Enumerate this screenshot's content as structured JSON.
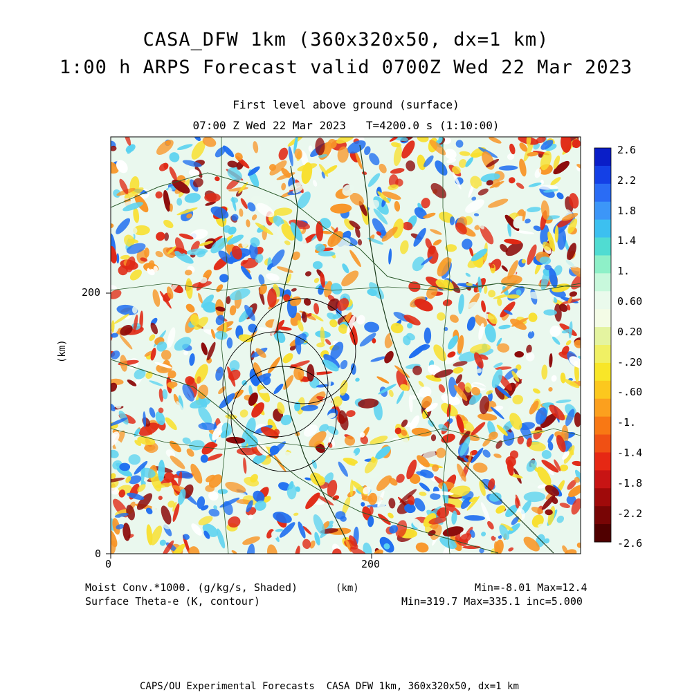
{
  "header": {
    "title_line1": "CASA_DFW 1km (360x320x50, dx=1 km)",
    "title_line2": "1:00 h ARPS Forecast valid 0700Z Wed 22 Mar 2023",
    "subtitle_line1": "First level above ground (surface)",
    "subtitle_line2": "07:00 Z Wed 22 Mar 2023   T=4200.0 s (1:10:00)"
  },
  "axes": {
    "y_label": "(km)",
    "x_label": "(km)",
    "x_ticks": [
      "0",
      "200"
    ],
    "y_ticks": [
      "0",
      "200"
    ],
    "x_range_km": [
      0,
      360
    ],
    "y_range_km": [
      0,
      320
    ]
  },
  "colorbar": {
    "labels": [
      "2.6",
      "2.2",
      "1.8",
      "1.4",
      "1.",
      "0.60",
      "0.20",
      "-.20",
      "-.60",
      "-1.",
      "-1.4",
      "-1.8",
      "-2.2",
      "-2.6"
    ],
    "colors": [
      "#0a1ec8",
      "#1440e6",
      "#2a6cf5",
      "#3c96f8",
      "#3cc0f0",
      "#50dcd2",
      "#8ef0c8",
      "#c8f8dc",
      "#eafaec",
      "#f4fce6",
      "#e4f4a0",
      "#f0f064",
      "#f8e628",
      "#fcc81e",
      "#fca01e",
      "#f87814",
      "#f05014",
      "#e62814",
      "#c81414",
      "#a00a0a",
      "#780505",
      "#500000"
    ]
  },
  "footer": {
    "left_line1": "Moist Conv.*1000. (g/kg/s, Shaded)",
    "left_line2": "Surface Theta-e (K, contour)",
    "center_unit": "(km)",
    "right_line1": "Min=-8.01 Max=12.4",
    "right_line2": "Min=319.7 Max=335.1 inc=5.000",
    "credit": "CAPS/OU Experimental Forecasts  CASA DFW 1km, 360x320x50, dx=1 km"
  },
  "field_colors": {
    "white": "#ffffff",
    "pale": "#eaf8ee",
    "blue": "#1e6ef0",
    "cyan": "#5ad2f0",
    "yellow": "#f8e030",
    "orange": "#f89628",
    "red": "#e02814",
    "darkred": "#8c0a0a"
  }
}
